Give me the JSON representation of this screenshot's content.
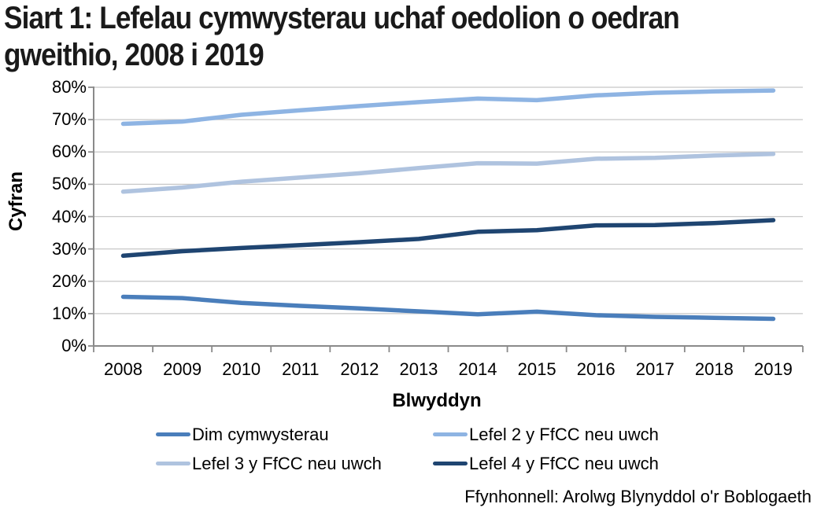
{
  "title_line1": "Siart 1: Lefelau cymwysterau uchaf oedolion o oedran",
  "title_line2": "gweithio, 2008 i 2019",
  "source": "Ffynhonnell: Arolwg Blynyddol o'r Boblogaeth",
  "chart_data": {
    "type": "line",
    "title": "Siart 1: Lefelau cymwysterau uchaf oedolion o oedran gweithio, 2008 i 2019",
    "xlabel": "Blwyddyn",
    "ylabel": "Cyfran",
    "ylim": [
      0,
      80
    ],
    "y_ticks": [
      "0%",
      "10%",
      "20%",
      "30%",
      "40%",
      "50%",
      "60%",
      "70%",
      "80%"
    ],
    "grid": true,
    "legend_position": "bottom",
    "categories": [
      "2008",
      "2009",
      "2010",
      "2011",
      "2012",
      "2013",
      "2014",
      "2015",
      "2016",
      "2017",
      "2018",
      "2019"
    ],
    "series": [
      {
        "name": "Dim cymwysterau",
        "color": "#4A7EBB",
        "values": [
          15.2,
          14.8,
          13.3,
          12.4,
          11.6,
          10.7,
          9.8,
          10.6,
          9.5,
          9.0,
          8.7,
          8.4
        ]
      },
      {
        "name": "Lefel 2 y FfCC neu uwch",
        "color": "#8EB4E3",
        "values": [
          68.7,
          69.4,
          71.5,
          72.9,
          74.2,
          75.4,
          76.5,
          76.0,
          77.5,
          78.3,
          78.7,
          79.0
        ]
      },
      {
        "name": "Lefel 3 y FfCC neu uwch",
        "color": "#AFC3DF",
        "values": [
          47.7,
          49.0,
          50.8,
          52.1,
          53.4,
          55.0,
          56.5,
          56.4,
          57.9,
          58.2,
          58.9,
          59.4
        ]
      },
      {
        "name": "Lefel 4 y FfCC neu uwch",
        "color": "#1F4571",
        "values": [
          27.9,
          29.3,
          30.3,
          31.2,
          32.1,
          33.1,
          35.3,
          35.8,
          37.3,
          37.4,
          38.0,
          38.9
        ]
      }
    ],
    "colors": {
      "gridline": "#C7C7C7",
      "axis": "#8A8A8A"
    }
  }
}
